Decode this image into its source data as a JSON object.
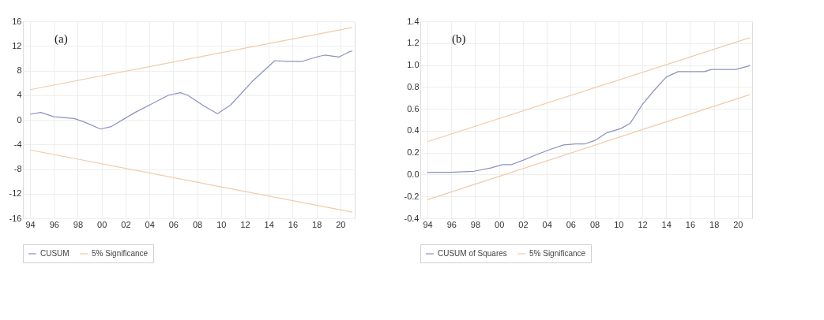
{
  "chart_data": [
    {
      "type": "line",
      "annotations": [
        "(a)"
      ],
      "xlim": [
        1993.4,
        2021.2
      ],
      "ylim": [
        -16,
        16
      ],
      "xticks": [
        {
          "value": 1994,
          "label": "94"
        },
        {
          "value": 1996,
          "label": "96"
        },
        {
          "value": 1998,
          "label": "98"
        },
        {
          "value": 2000,
          "label": "00"
        },
        {
          "value": 2002,
          "label": "02"
        },
        {
          "value": 2004,
          "label": "04"
        },
        {
          "value": 2006,
          "label": "06"
        },
        {
          "value": 2008,
          "label": "08"
        },
        {
          "value": 2010,
          "label": "10"
        },
        {
          "value": 2012,
          "label": "12"
        },
        {
          "value": 2014,
          "label": "14"
        },
        {
          "value": 2016,
          "label": "16"
        },
        {
          "value": 2018,
          "label": "18"
        },
        {
          "value": 2020,
          "label": "20"
        }
      ],
      "yticks": [
        -16,
        -12,
        -8,
        -4,
        0,
        4,
        8,
        12,
        16
      ],
      "grid": true,
      "legend": "bottom",
      "series": [
        {
          "name": "CUSUM",
          "color": "#8c90c4",
          "x": [
            1994.0,
            1994.9,
            1996.0,
            1997.7,
            1998.6,
            1999.9,
            2000.8,
            2002.8,
            2004.2,
            2005.6,
            2006.6,
            2007.2,
            2008.6,
            2009.7,
            2010.8,
            2012.6,
            2014.5,
            2015.7,
            2016.8,
            2018.2,
            2018.7,
            2019.9,
            2020.7,
            2021.0
          ],
          "values": [
            0.9,
            1.2,
            0.5,
            0.2,
            -0.4,
            -1.5,
            -1.1,
            1.2,
            2.6,
            4.0,
            4.4,
            4.0,
            2.2,
            1.0,
            2.4,
            6.2,
            9.6,
            9.5,
            9.5,
            10.3,
            10.5,
            10.2,
            11.0,
            11.2
          ]
        },
        {
          "name": "5% Significance",
          "color": "#f2c9a8",
          "x": [
            1994.0,
            2021.0
          ],
          "values": [
            4.9,
            15.0
          ]
        },
        {
          "color": "#f2c9a8",
          "x": [
            1994.0,
            2021.0
          ],
          "values": [
            -4.9,
            -15.0
          ]
        }
      ]
    },
    {
      "type": "line",
      "annotations": [
        "(b)"
      ],
      "xlim": [
        1993.4,
        2021.2
      ],
      "ylim": [
        -0.4,
        1.4
      ],
      "xticks": [
        {
          "value": 1994,
          "label": "94"
        },
        {
          "value": 1996,
          "label": "96"
        },
        {
          "value": 1998,
          "label": "98"
        },
        {
          "value": 2000,
          "label": "00"
        },
        {
          "value": 2002,
          "label": "02"
        },
        {
          "value": 2004,
          "label": "04"
        },
        {
          "value": 2006,
          "label": "06"
        },
        {
          "value": 2008,
          "label": "08"
        },
        {
          "value": 2010,
          "label": "10"
        },
        {
          "value": 2012,
          "label": "12"
        },
        {
          "value": 2014,
          "label": "14"
        },
        {
          "value": 2016,
          "label": "16"
        },
        {
          "value": 2018,
          "label": "18"
        },
        {
          "value": 2020,
          "label": "20"
        }
      ],
      "yticks": [
        -0.4,
        -0.2,
        {
          "value": 0,
          "label": "0.0"
        },
        0.2,
        0.4,
        0.6,
        0.8,
        {
          "value": 1,
          "label": "1.0"
        },
        1.2,
        1.4
      ],
      "grid": true,
      "legend": "bottom",
      "series": [
        {
          "name": "CUSUM of Squares",
          "color": "#8c90c4",
          "x": [
            1994.0,
            1995.9,
            1997.9,
            1999.3,
            2000.3,
            2001.0,
            2002.0,
            2003.1,
            2004.3,
            2005.4,
            2006.4,
            2007.2,
            2008.0,
            2009.0,
            2010.2,
            2011.0,
            2012.0,
            2013.0,
            2014.0,
            2015.0,
            2016.0,
            2017.2,
            2017.8,
            2019.8,
            2020.9,
            2021.0
          ],
          "values": [
            0.02,
            0.02,
            0.03,
            0.06,
            0.09,
            0.09,
            0.13,
            0.18,
            0.23,
            0.27,
            0.28,
            0.28,
            0.31,
            0.38,
            0.42,
            0.47,
            0.64,
            0.77,
            0.89,
            0.94,
            0.94,
            0.94,
            0.96,
            0.96,
            0.99,
            1.0
          ]
        },
        {
          "name": "5% Significance",
          "color": "#f2c9a8",
          "x": [
            1994.0,
            2021.0
          ],
          "values": [
            0.3,
            1.25
          ]
        },
        {
          "color": "#f2c9a8",
          "x": [
            1994.0,
            2021.0
          ],
          "values": [
            -0.23,
            0.73
          ]
        }
      ]
    }
  ]
}
